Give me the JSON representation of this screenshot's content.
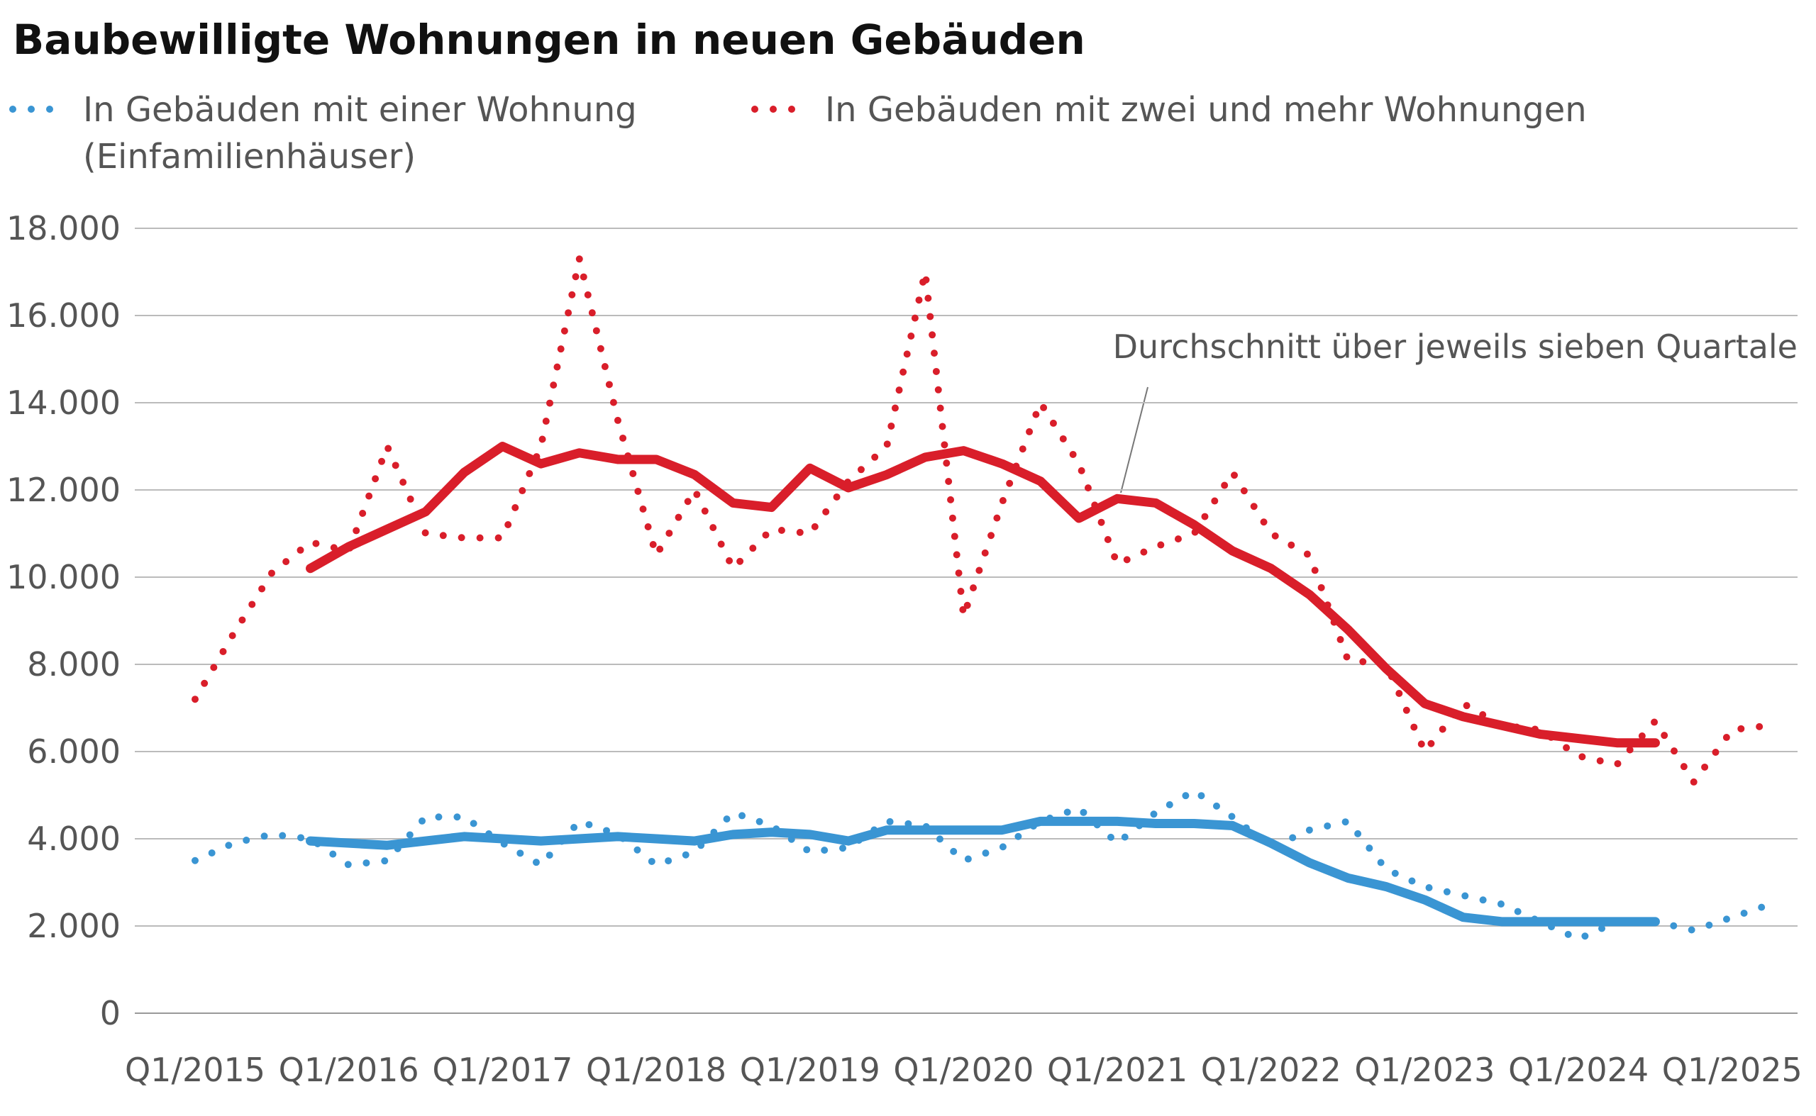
{
  "chart_data": {
    "type": "line",
    "title": "Baubewilligte Wohnungen in neuen Gebäuden",
    "annotation": "Durchschnitt über jeweils sieben Quartale",
    "categories": [
      "Q1/2015",
      null,
      null,
      null,
      "Q1/2016",
      null,
      null,
      null,
      "Q1/2017",
      null,
      null,
      null,
      "Q1/2018",
      null,
      null,
      null,
      "Q1/2019",
      null,
      null,
      null,
      "Q1/2020",
      null,
      null,
      null,
      "Q1/2021",
      null,
      null,
      null,
      "Q1/2022",
      null,
      null,
      null,
      "Q1/2023",
      null,
      null,
      null,
      "Q1/2024",
      null,
      null,
      null,
      "Q1/2025",
      null
    ],
    "series": [
      {
        "name": "In Gebäuden mit einer Wohnung (Einfamilienhäuser)",
        "color": "#3a95d3",
        "values": [
          3500,
          3900,
          4100,
          4000,
          3400,
          3500,
          4500,
          4500,
          3900,
          3400,
          4400,
          4100,
          3400,
          3700,
          4600,
          4300,
          3700,
          3800,
          4400,
          4300,
          3500,
          3800,
          4400,
          4700,
          3900,
          4600,
          5100,
          4500,
          3800,
          4200,
          4400,
          3300,
          2900,
          2700,
          2500,
          2100,
          1700,
          2100,
          2100,
          1900,
          2200,
          2500
        ],
        "moving_average": [
          null,
          null,
          null,
          3950,
          3900,
          3850,
          3950,
          4050,
          4000,
          3950,
          4000,
          4050,
          4000,
          3950,
          4100,
          4150,
          4100,
          3950,
          4200,
          4200,
          4200,
          4200,
          4400,
          4400,
          4400,
          4350,
          4350,
          4300,
          3900,
          3450,
          3100,
          2900,
          2600,
          2200,
          2100,
          2100,
          2100,
          2100,
          2100,
          null,
          null,
          null
        ]
      },
      {
        "name": "In Gebäuden mit zwei und mehr Wohnungen",
        "color": "#d91e2a",
        "values": [
          7200,
          8700,
          10100,
          10800,
          10600,
          13000,
          11000,
          10900,
          10900,
          13000,
          17300,
          13600,
          10500,
          12000,
          10200,
          11100,
          11000,
          12200,
          13000,
          17000,
          9100,
          11700,
          14000,
          12600,
          10300,
          10700,
          11000,
          12400,
          11000,
          10500,
          8100,
          8000,
          6000,
          7100,
          6600,
          6500,
          5900,
          5700,
          6700,
          5300,
          6500,
          6600
        ],
        "moving_average": [
          null,
          null,
          null,
          10200,
          10700,
          11100,
          11500,
          12400,
          13000,
          12600,
          12850,
          12700,
          12700,
          12350,
          11700,
          11600,
          12500,
          12050,
          12350,
          12750,
          12900,
          12600,
          12200,
          11350,
          11800,
          11700,
          11200,
          10600,
          10200,
          9600,
          8800,
          7900,
          7100,
          6800,
          6600,
          6400,
          6300,
          6200,
          6200,
          null,
          null,
          null
        ]
      }
    ],
    "ylim": [
      0,
      18000
    ],
    "yticks": [
      0,
      {
        "value": 2000,
        "label": "2.000"
      },
      {
        "value": 4000,
        "label": "4.000"
      },
      {
        "value": 6000,
        "label": "6.000"
      },
      {
        "value": 8000,
        "label": "8.000"
      },
      {
        "value": 10000,
        "label": "10.000"
      },
      {
        "value": 12000,
        "label": "12.000"
      },
      {
        "value": 14000,
        "label": "14.000"
      },
      {
        "value": 16000,
        "label": "16.000"
      },
      {
        "value": 18000,
        "label": "18.000"
      }
    ],
    "grid": true
  }
}
